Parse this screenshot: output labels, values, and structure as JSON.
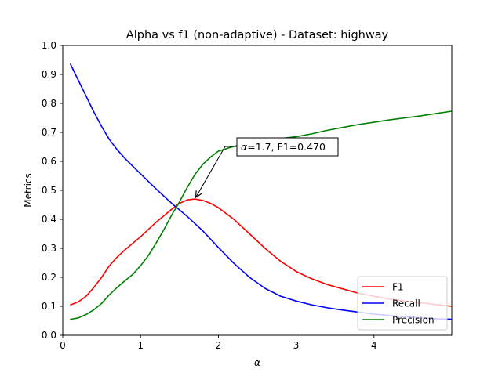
{
  "chart_data": {
    "type": "line",
    "title": "Alpha vs f1 (non-adaptive) - Dataset: highway",
    "xlabel": "α",
    "ylabel": "Metrics",
    "xlim": [
      0,
      5
    ],
    "ylim": [
      0,
      1
    ],
    "xticks": [
      "0",
      "1",
      "2",
      "3",
      "4"
    ],
    "yticks": [
      "0.0",
      "0.1",
      "0.2",
      "0.3",
      "0.4",
      "0.5",
      "0.6",
      "0.7",
      "0.8",
      "0.9",
      "1.0"
    ],
    "grid": false,
    "legend_position": "lower-right",
    "annotation": {
      "text_prefix": "α",
      "text_rest": "=1.7, F1=0.470",
      "x": 1.7,
      "y": 0.47
    },
    "series": [
      {
        "name": "F1",
        "color": "#ff0000",
        "x": [
          0.1,
          0.2,
          0.3,
          0.4,
          0.5,
          0.6,
          0.7,
          0.8,
          1.0,
          1.2,
          1.4,
          1.5,
          1.6,
          1.7,
          1.8,
          1.9,
          2.0,
          2.2,
          2.4,
          2.6,
          2.8,
          3.0,
          3.2,
          3.4,
          3.6,
          3.8,
          4.0,
          4.2,
          4.4,
          4.6,
          4.8,
          5.0
        ],
        "values": [
          0.105,
          0.115,
          0.135,
          0.165,
          0.2,
          0.24,
          0.27,
          0.295,
          0.34,
          0.39,
          0.435,
          0.455,
          0.467,
          0.47,
          0.465,
          0.455,
          0.44,
          0.4,
          0.35,
          0.3,
          0.255,
          0.22,
          0.195,
          0.175,
          0.16,
          0.145,
          0.135,
          0.125,
          0.118,
          0.112,
          0.106,
          0.1
        ]
      },
      {
        "name": "Recall",
        "color": "#0000ff",
        "x": [
          0.1,
          0.2,
          0.3,
          0.4,
          0.5,
          0.6,
          0.7,
          0.8,
          0.9,
          1.0,
          1.2,
          1.4,
          1.6,
          1.8,
          2.0,
          2.2,
          2.4,
          2.6,
          2.8,
          3.0,
          3.2,
          3.4,
          3.6,
          3.8,
          4.0,
          4.2,
          4.4,
          4.6,
          4.8,
          5.0
        ],
        "values": [
          0.935,
          0.88,
          0.825,
          0.77,
          0.72,
          0.675,
          0.64,
          0.61,
          0.583,
          0.557,
          0.505,
          0.455,
          0.41,
          0.36,
          0.303,
          0.248,
          0.2,
          0.162,
          0.135,
          0.118,
          0.105,
          0.095,
          0.087,
          0.08,
          0.073,
          0.068,
          0.064,
          0.06,
          0.057,
          0.055
        ]
      },
      {
        "name": "Precision",
        "color": "#008000",
        "x": [
          0.1,
          0.2,
          0.3,
          0.4,
          0.5,
          0.6,
          0.7,
          0.8,
          0.9,
          1.0,
          1.1,
          1.2,
          1.3,
          1.4,
          1.5,
          1.6,
          1.7,
          1.8,
          1.9,
          2.0,
          2.2,
          2.4,
          2.6,
          2.8,
          3.0,
          3.2,
          3.4,
          3.6,
          3.8,
          4.0,
          4.2,
          4.4,
          4.6,
          4.8,
          5.0
        ],
        "values": [
          0.055,
          0.06,
          0.072,
          0.088,
          0.11,
          0.14,
          0.165,
          0.188,
          0.21,
          0.24,
          0.275,
          0.318,
          0.365,
          0.415,
          0.46,
          0.51,
          0.555,
          0.59,
          0.615,
          0.635,
          0.652,
          0.663,
          0.672,
          0.679,
          0.685,
          0.695,
          0.707,
          0.717,
          0.727,
          0.735,
          0.743,
          0.75,
          0.757,
          0.765,
          0.773
        ]
      }
    ]
  }
}
